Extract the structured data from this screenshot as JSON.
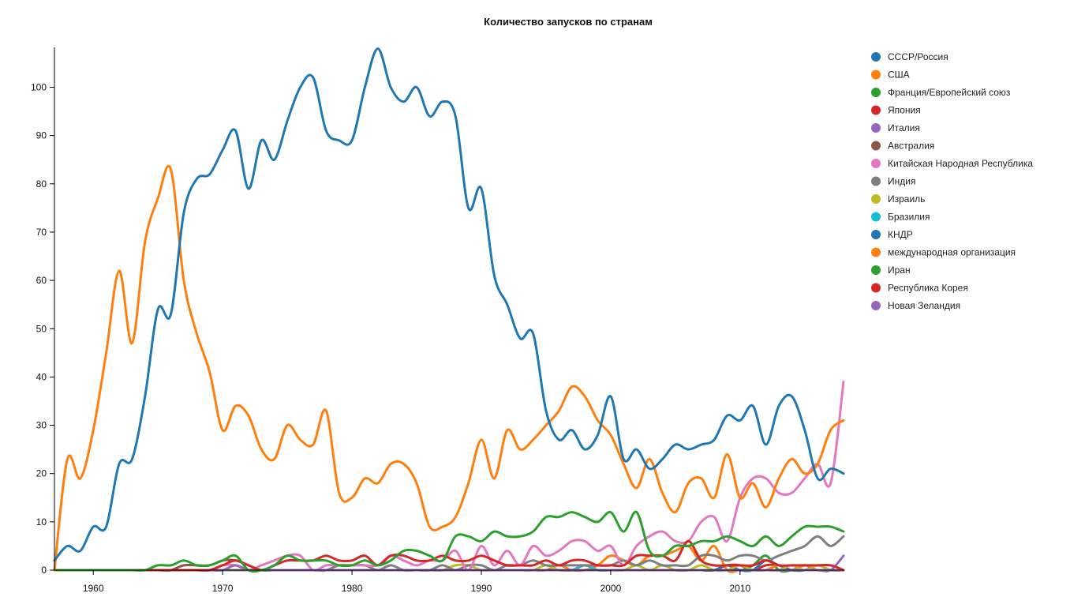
{
  "chart_data": {
    "type": "line",
    "title": "Количество запусков по странам",
    "xlabel": "",
    "ylabel": "",
    "xlim": [
      1957,
      2018
    ],
    "ylim": [
      0,
      108
    ],
    "x_ticks": [
      1960,
      1970,
      1980,
      1990,
      2000,
      2010
    ],
    "y_ticks": [
      0,
      10,
      20,
      30,
      40,
      50,
      60,
      70,
      80,
      90,
      100
    ],
    "grid": false,
    "legend_position": "right",
    "x": [
      1957,
      1958,
      1959,
      1960,
      1961,
      1962,
      1963,
      1964,
      1965,
      1966,
      1967,
      1968,
      1969,
      1970,
      1971,
      1972,
      1973,
      1974,
      1975,
      1976,
      1977,
      1978,
      1979,
      1980,
      1981,
      1982,
      1983,
      1984,
      1985,
      1986,
      1987,
      1988,
      1989,
      1990,
      1991,
      1992,
      1993,
      1994,
      1995,
      1996,
      1997,
      1998,
      1999,
      2000,
      2001,
      2002,
      2003,
      2004,
      2005,
      2006,
      2007,
      2008,
      2009,
      2010,
      2011,
      2012,
      2013,
      2014,
      2015,
      2016,
      2017,
      2018
    ],
    "series": [
      {
        "name": "СССР/Россия",
        "color": "#1f77b4",
        "values": [
          2,
          5,
          4,
          9,
          9,
          22,
          23,
          36,
          54,
          53,
          74,
          81,
          82,
          87,
          91,
          79,
          89,
          85,
          93,
          100,
          102,
          91,
          89,
          89,
          100,
          108,
          100,
          97,
          100,
          94,
          97,
          94,
          75,
          79,
          61,
          55,
          48,
          49,
          33,
          27,
          29,
          25,
          28,
          36,
          23,
          25,
          21,
          23,
          26,
          25,
          26,
          27,
          32,
          31,
          34,
          26,
          34,
          36,
          29,
          19,
          21,
          20
        ]
      },
      {
        "name": "США",
        "color": "#ff7f0e",
        "values": [
          0,
          23,
          19,
          29,
          45,
          62,
          47,
          68,
          77,
          83,
          60,
          49,
          41,
          29,
          34,
          32,
          25,
          23,
          30,
          27,
          26,
          33,
          16,
          15,
          19,
          18,
          22,
          22,
          18,
          9,
          9,
          11,
          18,
          27,
          19,
          29,
          25,
          27,
          30,
          33,
          38,
          36,
          31,
          28,
          22,
          17,
          23,
          16,
          12,
          18,
          19,
          15,
          24,
          15,
          18,
          13,
          19,
          23,
          20,
          22,
          29,
          31
        ]
      },
      {
        "name": "Франция/Европейский союз",
        "color": "#2ca02c",
        "values": [
          0,
          0,
          0,
          0,
          0,
          0,
          0,
          0,
          1,
          1,
          2,
          1,
          1,
          2,
          3,
          0,
          0,
          1,
          3,
          2,
          2,
          2,
          1,
          1,
          2,
          1,
          2,
          4,
          4,
          3,
          2,
          7,
          7,
          6,
          8,
          7,
          7,
          8,
          11,
          11,
          12,
          11,
          10,
          12,
          8,
          12,
          4,
          3,
          5,
          5,
          6,
          6,
          7,
          6,
          5,
          7,
          5,
          7,
          9,
          9,
          9,
          8
        ]
      },
      {
        "name": "Япония",
        "color": "#d62728",
        "values": [
          0,
          0,
          0,
          0,
          0,
          0,
          0,
          0,
          0,
          0,
          0,
          0,
          0,
          1,
          2,
          1,
          0,
          1,
          2,
          2,
          2,
          3,
          2,
          2,
          3,
          1,
          3,
          3,
          2,
          2,
          3,
          2,
          2,
          3,
          2,
          1,
          1,
          1,
          2,
          1,
          2,
          2,
          1,
          1,
          1,
          3,
          3,
          3,
          2,
          6,
          2,
          1,
          1,
          1,
          1,
          2,
          1,
          1,
          1,
          1,
          1,
          0
        ]
      },
      {
        "name": "Италия",
        "color": "#9467bd",
        "values": [
          0,
          0,
          0,
          0,
          0,
          0,
          0,
          0,
          0,
          0,
          0,
          0,
          0,
          0,
          1,
          0,
          0,
          0,
          0,
          0,
          0,
          0,
          0,
          0,
          0,
          0,
          0,
          0,
          0,
          0,
          0,
          0,
          0,
          0,
          0,
          0,
          0,
          0,
          0,
          0,
          0,
          0,
          0,
          0,
          0,
          0,
          0,
          0,
          0,
          0,
          0,
          0,
          0,
          0,
          0,
          0,
          0,
          0,
          0,
          0,
          0,
          0
        ]
      },
      {
        "name": "Австралия",
        "color": "#8c564b",
        "values": [
          0,
          0,
          0,
          0,
          0,
          0,
          0,
          0,
          0,
          0,
          1,
          1,
          1,
          2,
          2,
          1,
          0,
          0,
          0,
          0,
          0,
          0,
          0,
          0,
          0,
          0,
          0,
          0,
          0,
          0,
          0,
          0,
          0,
          0,
          0,
          0,
          0,
          0,
          0,
          0,
          0,
          0,
          0,
          0,
          0,
          0,
          0,
          0,
          0,
          0,
          0,
          0,
          0,
          0,
          0,
          0,
          0,
          0,
          0,
          0,
          0,
          0
        ]
      },
      {
        "name": "Китайская Народная Республика",
        "color": "#e377c2",
        "values": [
          0,
          0,
          0,
          0,
          0,
          0,
          0,
          0,
          0,
          0,
          0,
          0,
          0,
          1,
          1,
          0,
          1,
          2,
          3,
          3,
          0,
          1,
          1,
          1,
          1,
          1,
          3,
          2,
          1,
          2,
          2,
          4,
          0,
          5,
          1,
          4,
          1,
          5,
          3,
          4,
          6,
          6,
          4,
          5,
          1,
          5,
          7,
          8,
          6,
          6,
          10,
          11,
          6,
          15,
          19,
          19,
          16,
          16,
          19,
          22,
          18,
          39
        ]
      },
      {
        "name": "Индия",
        "color": "#7f7f7f",
        "values": [
          0,
          0,
          0,
          0,
          0,
          0,
          0,
          0,
          0,
          0,
          0,
          0,
          0,
          0,
          0,
          0,
          0,
          0,
          0,
          0,
          0,
          0,
          1,
          1,
          1,
          0,
          1,
          0,
          0,
          0,
          1,
          0,
          1,
          1,
          0,
          1,
          1,
          2,
          1,
          1,
          1,
          1,
          1,
          1,
          2,
          1,
          2,
          1,
          1,
          1,
          3,
          3,
          2,
          3,
          3,
          2,
          3,
          4,
          5,
          7,
          5,
          7
        ]
      },
      {
        "name": "Израиль",
        "color": "#bcbd22",
        "values": [
          0,
          0,
          0,
          0,
          0,
          0,
          0,
          0,
          0,
          0,
          0,
          0,
          0,
          0,
          0,
          0,
          0,
          0,
          0,
          0,
          0,
          0,
          0,
          0,
          0,
          0,
          0,
          0,
          0,
          0,
          0,
          1,
          1,
          0,
          0,
          0,
          0,
          0,
          1,
          0,
          0,
          0,
          0,
          0,
          0,
          1,
          0,
          1,
          0,
          0,
          1,
          0,
          0,
          1,
          0,
          0,
          0,
          1,
          0,
          1,
          0,
          0
        ]
      },
      {
        "name": "Бразилия",
        "color": "#17becf",
        "values": [
          0,
          0,
          0,
          0,
          0,
          0,
          0,
          0,
          0,
          0,
          0,
          0,
          0,
          0,
          0,
          0,
          0,
          0,
          0,
          0,
          0,
          0,
          0,
          0,
          0,
          0,
          0,
          0,
          0,
          0,
          0,
          0,
          0,
          0,
          0,
          0,
          0,
          0,
          0,
          0,
          0,
          1,
          0,
          0,
          0,
          0,
          0,
          0,
          0,
          0,
          0,
          0,
          0,
          0,
          0,
          0,
          0,
          0,
          0,
          0,
          0,
          0
        ]
      },
      {
        "name": "КНДР",
        "color": "#1f77b4",
        "values": [
          0,
          0,
          0,
          0,
          0,
          0,
          0,
          0,
          0,
          0,
          0,
          0,
          0,
          0,
          0,
          0,
          0,
          0,
          0,
          0,
          0,
          0,
          0,
          0,
          0,
          0,
          0,
          0,
          0,
          0,
          0,
          0,
          0,
          0,
          0,
          0,
          0,
          0,
          0,
          0,
          0,
          1,
          0,
          0,
          0,
          0,
          0,
          0,
          0,
          0,
          0,
          0,
          1,
          0,
          0,
          2,
          1,
          0,
          0,
          1,
          0,
          0
        ]
      },
      {
        "name": "международная организация",
        "color": "#ff7f0e",
        "values": [
          0,
          0,
          0,
          0,
          0,
          0,
          0,
          0,
          0,
          0,
          0,
          0,
          0,
          0,
          0,
          0,
          0,
          0,
          0,
          0,
          0,
          0,
          0,
          0,
          0,
          0,
          0,
          0,
          0,
          0,
          0,
          0,
          0,
          0,
          0,
          0,
          0,
          0,
          0,
          1,
          0,
          0,
          1,
          3,
          2,
          1,
          3,
          3,
          4,
          5,
          2,
          5,
          0,
          0,
          0,
          0,
          1,
          0,
          1,
          0,
          0,
          0
        ]
      },
      {
        "name": "Иран",
        "color": "#2ca02c",
        "values": [
          0,
          0,
          0,
          0,
          0,
          0,
          0,
          0,
          0,
          0,
          0,
          0,
          0,
          0,
          0,
          0,
          0,
          0,
          0,
          0,
          0,
          0,
          0,
          0,
          0,
          0,
          0,
          0,
          0,
          0,
          0,
          0,
          0,
          0,
          0,
          0,
          0,
          0,
          0,
          0,
          0,
          0,
          0,
          0,
          0,
          0,
          0,
          0,
          0,
          0,
          0,
          0,
          1,
          0,
          1,
          3,
          0,
          0,
          1,
          0,
          0,
          0
        ]
      },
      {
        "name": "Республика Корея",
        "color": "#d62728",
        "values": [
          0,
          0,
          0,
          0,
          0,
          0,
          0,
          0,
          0,
          0,
          0,
          0,
          0,
          0,
          0,
          0,
          0,
          0,
          0,
          0,
          0,
          0,
          0,
          0,
          0,
          0,
          0,
          0,
          0,
          0,
          0,
          0,
          0,
          0,
          0,
          0,
          0,
          0,
          0,
          0,
          0,
          0,
          0,
          0,
          0,
          0,
          0,
          0,
          0,
          0,
          0,
          0,
          1,
          1,
          0,
          1,
          1,
          0,
          0,
          0,
          0,
          0
        ]
      },
      {
        "name": "Новая Зеландия",
        "color": "#9467bd",
        "values": [
          0,
          0,
          0,
          0,
          0,
          0,
          0,
          0,
          0,
          0,
          0,
          0,
          0,
          0,
          0,
          0,
          0,
          0,
          0,
          0,
          0,
          0,
          0,
          0,
          0,
          0,
          0,
          0,
          0,
          0,
          0,
          0,
          0,
          0,
          0,
          0,
          0,
          0,
          0,
          0,
          0,
          0,
          0,
          0,
          0,
          0,
          0,
          0,
          0,
          0,
          0,
          0,
          0,
          0,
          0,
          0,
          0,
          0,
          0,
          0,
          0,
          3
        ]
      }
    ]
  }
}
